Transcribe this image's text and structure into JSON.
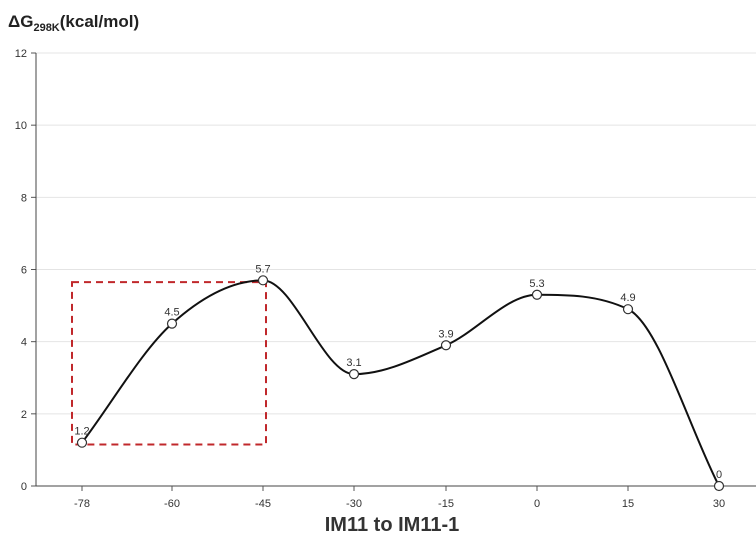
{
  "chart_data": {
    "type": "line",
    "title": "",
    "ylabel": {
      "prefix": "ΔG",
      "subscript": "298K",
      "suffix": "(kcal/mol)"
    },
    "xlabel": "IM11 to IM11-1",
    "x": [
      -78,
      -60,
      -45,
      -30,
      -15,
      0,
      15,
      30
    ],
    "series": [
      {
        "values": [
          1.2,
          4.5,
          5.7,
          3.1,
          3.9,
          5.3,
          4.9,
          0
        ]
      }
    ],
    "data_labels": [
      "1.2",
      "4.5",
      "5.7",
      "3.1",
      "3.9",
      "5.3",
      "4.9",
      "0"
    ],
    "yticks": [
      0,
      2,
      4,
      6,
      8,
      10,
      12
    ],
    "ylim": [
      0,
      12
    ],
    "xtick_labels": [
      "-78",
      "-60",
      "-45",
      "-30",
      "-15",
      "0",
      "15",
      "30"
    ],
    "grid": "horizontal",
    "line_color": "#111111",
    "grid_color": "#e4e4e4",
    "highlight_color": "#c0282b",
    "highlight": {
      "x_range": [
        -78,
        -45
      ],
      "y_range": [
        1.15,
        5.65
      ],
      "style": "dashed"
    }
  }
}
